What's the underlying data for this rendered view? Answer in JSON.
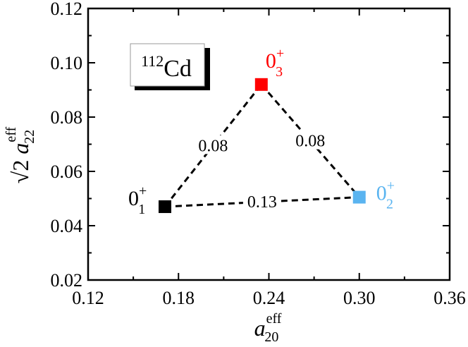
{
  "chart_data": {
    "type": "scatter",
    "xlim": [
      0.12,
      0.36
    ],
    "ylim": [
      0.02,
      0.12
    ],
    "x_ticks": [
      0.12,
      0.18,
      0.24,
      0.3,
      0.36
    ],
    "y_ticks": [
      0.02,
      0.04,
      0.06,
      0.08,
      0.1,
      0.12
    ],
    "x_tick_labels": [
      "0.12",
      "0.18",
      "0.24",
      "0.30",
      "0.36"
    ],
    "y_tick_labels": [
      "0.02",
      "0.04",
      "0.06",
      "0.08",
      "0.10",
      "0.12"
    ],
    "xlabel": {
      "base": "a",
      "sup": "eff",
      "sub": "20"
    },
    "ylabel": {
      "prefix": "√2 ",
      "base": "a",
      "sup": "eff",
      "sub": "22"
    },
    "nucleus_label": {
      "mass": "112",
      "symbol": "Cd"
    },
    "grid": false,
    "points": [
      {
        "name": "0_1+",
        "label_base": "0",
        "label_sub": "1",
        "label_sup": "+",
        "x": 0.171,
        "y": 0.047,
        "color": "#000000"
      },
      {
        "name": "0_2+",
        "label_base": "0",
        "label_sub": "2",
        "label_sup": "+",
        "x": 0.3,
        "y": 0.0505,
        "color": "#5ab4f0"
      },
      {
        "name": "0_3+",
        "label_base": "0",
        "label_sub": "3",
        "label_sup": "+",
        "x": 0.235,
        "y": 0.092,
        "color": "#ff0000"
      }
    ],
    "connections": [
      {
        "from": 0,
        "to": 2,
        "label": "0.08"
      },
      {
        "from": 2,
        "to": 1,
        "label": "0.08"
      },
      {
        "from": 0,
        "to": 1,
        "label": "0.13"
      }
    ]
  }
}
